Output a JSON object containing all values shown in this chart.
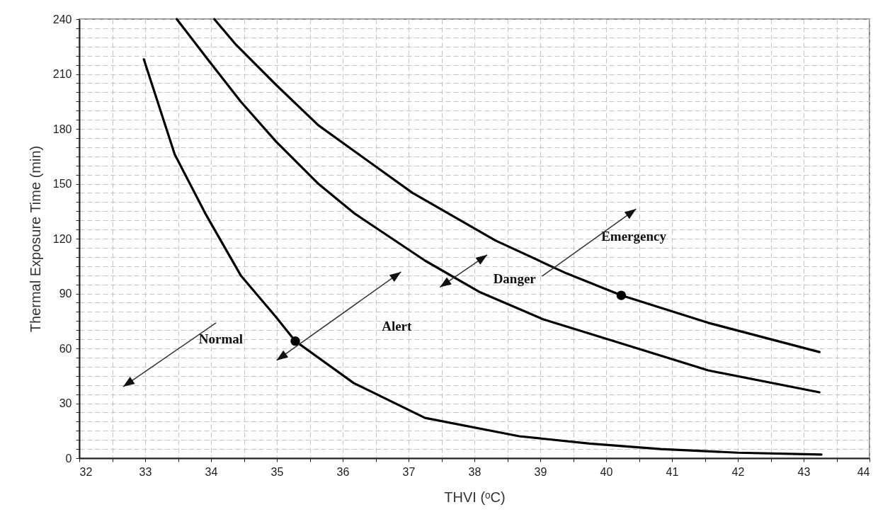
{
  "chart_data": {
    "type": "line",
    "xlabel": "THVI (ᵒC)",
    "ylabel": "Thermal Exposure Time (min)",
    "xlim": [
      32,
      44
    ],
    "ylim": [
      0,
      240
    ],
    "xticks": [
      32,
      {
        "value": 32.5,
        "label": null
      },
      33,
      {
        "value": 33.5,
        "label": null
      },
      34,
      {
        "value": 34.5,
        "label": null
      },
      35,
      {
        "value": 35.5,
        "label": null
      },
      36,
      {
        "value": 36.5,
        "label": null
      },
      37,
      {
        "value": 37.5,
        "label": null
      },
      38,
      {
        "value": 38.5,
        "label": null
      },
      39,
      {
        "value": 39.5,
        "label": null
      },
      40,
      {
        "value": 40.5,
        "label": null
      },
      41,
      {
        "value": 41.5,
        "label": null
      },
      42,
      {
        "value": 42.5,
        "label": null
      },
      43,
      {
        "value": 43.5,
        "label": null
      },
      44
    ],
    "yticks": [
      0,
      {
        "value": 5,
        "label": null
      },
      {
        "value": 10,
        "label": null
      },
      {
        "value": 15,
        "label": null
      },
      {
        "value": 20,
        "label": null
      },
      {
        "value": 25,
        "label": null
      },
      30,
      {
        "value": 35,
        "label": null
      },
      {
        "value": 40,
        "label": null
      },
      {
        "value": 45,
        "label": null
      },
      {
        "value": 50,
        "label": null
      },
      {
        "value": 55,
        "label": null
      },
      60,
      {
        "value": 65,
        "label": null
      },
      {
        "value": 70,
        "label": null
      },
      {
        "value": 75,
        "label": null
      },
      {
        "value": 80,
        "label": null
      },
      {
        "value": 85,
        "label": null
      },
      90,
      {
        "value": 95,
        "label": null
      },
      {
        "value": 100,
        "label": null
      },
      {
        "value": 105,
        "label": null
      },
      {
        "value": 110,
        "label": null
      },
      {
        "value": 115,
        "label": null
      },
      120,
      {
        "value": 125,
        "label": null
      },
      {
        "value": 130,
        "label": null
      },
      {
        "value": 135,
        "label": null
      },
      {
        "value": 140,
        "label": null
      },
      {
        "value": 145,
        "label": null
      },
      150,
      {
        "value": 155,
        "label": null
      },
      {
        "value": 160,
        "label": null
      },
      {
        "value": 165,
        "label": null
      },
      {
        "value": 170,
        "label": null
      },
      {
        "value": 175,
        "label": null
      },
      180,
      {
        "value": 185,
        "label": null
      },
      {
        "value": 190,
        "label": null
      },
      {
        "value": 195,
        "label": null
      },
      {
        "value": 200,
        "label": null
      },
      {
        "value": 205,
        "label": null
      },
      210,
      {
        "value": 215,
        "label": null
      },
      {
        "value": 220,
        "label": null
      },
      {
        "value": 225,
        "label": null
      },
      {
        "value": 230,
        "label": null
      },
      {
        "value": 235,
        "label": null
      },
      240
    ],
    "grid": true,
    "marker": "none",
    "line_style": "solid",
    "series": [
      {
        "color": "#000000",
        "x": [
          32.98,
          33.45,
          33.91,
          34.45,
          34.99,
          35.28,
          36.17,
          37.25,
          38.68,
          39.75,
          40.83,
          42,
          43.27
        ],
        "values": [
          218,
          166,
          134,
          100,
          77,
          64,
          41,
          22,
          12,
          8,
          5,
          3,
          2
        ]
      },
      {
        "color": "#000000",
        "x": [
          33.48,
          33.95,
          34.45,
          34.99,
          35.63,
          36.17,
          37.25,
          38.07,
          39.04,
          40.12,
          41.55,
          43.24
        ],
        "values": [
          240,
          218,
          195,
          173,
          150,
          134,
          108,
          91,
          76,
          64,
          48,
          36
        ]
      },
      {
        "color": "#000000",
        "x": [
          34.05,
          34.38,
          34.99,
          35.63,
          36.17,
          37.06,
          38.32,
          39.4,
          40.23,
          41.55,
          43.24
        ],
        "values": [
          240,
          226,
          204,
          182,
          168,
          145,
          119,
          101,
          89,
          74,
          58
        ]
      },
      {
        "type": "scatter",
        "marker": "circle",
        "color": "#000000",
        "x": [
          35.28,
          40.23
        ],
        "values": [
          64,
          89
        ]
      }
    ],
    "annotations": [
      "Normal",
      "Alert",
      "Danger",
      "Emergency"
    ]
  }
}
